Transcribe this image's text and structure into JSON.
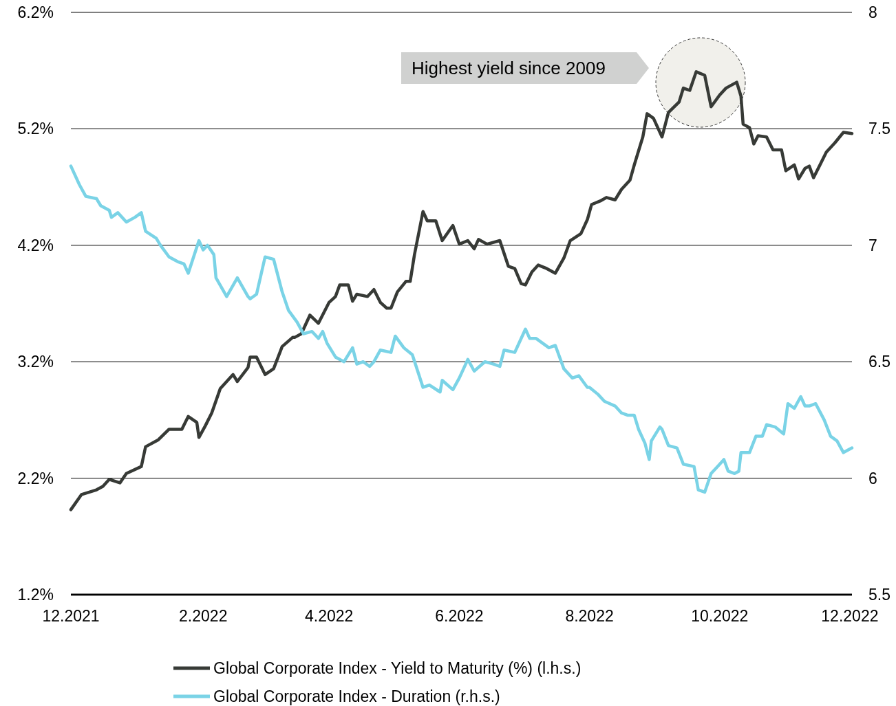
{
  "chart_data": {
    "type": "line",
    "xlim": [
      "2021-12-01",
      "2022-12-02"
    ],
    "xticks": [
      {
        "value": "2021-12-01",
        "label": "12.2021"
      },
      {
        "value": "2022-02-01",
        "label": "2.2022"
      },
      {
        "value": "2022-04-01",
        "label": "4.2022"
      },
      {
        "value": "2022-06-01",
        "label": "6.2022"
      },
      {
        "value": "2022-08-01",
        "label": "8.2022"
      },
      {
        "value": "2022-10-01",
        "label": "10.2022"
      },
      {
        "value": "2022-12-01",
        "label": "12.2022"
      }
    ],
    "ylim": [
      1.2,
      6.2
    ],
    "yticks": [
      {
        "value": 1.2,
        "label": "1.2%"
      },
      {
        "value": 2.2,
        "label": "2.2%"
      },
      {
        "value": 3.2,
        "label": "3.2%"
      },
      {
        "value": 4.2,
        "label": "4.2%"
      },
      {
        "value": 5.2,
        "label": "5.2%"
      },
      {
        "value": 6.2,
        "label": "6.2%"
      }
    ],
    "y2lim": [
      5.5,
      8
    ],
    "y2ticks": [
      5.5,
      6,
      6.5,
      7,
      7.5,
      8
    ],
    "grid": "y",
    "legend": "bottom",
    "annotations": [
      "Highest yield since 2009"
    ],
    "series": [
      {
        "name": "Global Corporate Index - Yield to Maturity (%) (l.h.s.)",
        "color": "#373a36",
        "x": [
          "2021-12-01",
          "2021-12-06",
          "2021-12-13",
          "2021-12-16",
          "2021-12-19",
          "2021-12-24",
          "2021-12-27",
          "2022-01-03",
          "2022-01-05",
          "2022-01-11",
          "2022-01-16",
          "2022-01-22",
          "2022-01-25",
          "2022-01-29",
          "2022-01-30",
          "2022-02-02",
          "2022-02-05",
          "2022-02-09",
          "2022-02-15",
          "2022-02-17",
          "2022-02-22",
          "2022-02-23",
          "2022-02-26",
          "2022-03-02",
          "2022-03-06",
          "2022-03-10",
          "2022-03-15",
          "2022-03-16",
          "2022-03-19",
          "2022-03-23",
          "2022-03-27",
          "2022-04-01",
          "2022-04-04",
          "2022-04-06",
          "2022-04-10",
          "2022-04-12",
          "2022-04-14",
          "2022-04-19",
          "2022-04-22",
          "2022-04-25",
          "2022-04-28",
          "2022-04-30",
          "2022-05-03",
          "2022-05-07",
          "2022-05-09",
          "2022-05-11",
          "2022-05-15",
          "2022-05-17",
          "2022-05-21",
          "2022-05-24",
          "2022-05-29",
          "2022-06-01",
          "2022-06-05",
          "2022-06-08",
          "2022-06-10",
          "2022-06-14",
          "2022-06-20",
          "2022-06-24",
          "2022-06-27",
          "2022-06-30",
          "2022-07-02",
          "2022-07-05",
          "2022-07-08",
          "2022-07-12",
          "2022-07-16",
          "2022-07-20",
          "2022-07-23",
          "2022-07-28",
          "2022-07-31",
          "2022-08-02",
          "2022-08-06",
          "2022-08-09",
          "2022-08-13",
          "2022-08-16",
          "2022-08-20",
          "2022-08-22",
          "2022-08-26",
          "2022-08-28",
          "2022-08-31",
          "2022-09-04",
          "2022-09-07",
          "2022-09-12",
          "2022-09-14",
          "2022-09-17",
          "2022-09-20",
          "2022-09-24",
          "2022-09-27",
          "2022-10-01",
          "2022-10-04",
          "2022-10-09",
          "2022-10-11",
          "2022-10-12",
          "2022-10-15",
          "2022-10-17",
          "2022-10-19",
          "2022-10-23",
          "2022-10-26",
          "2022-10-30",
          "2022-11-01",
          "2022-11-05",
          "2022-11-07",
          "2022-11-10",
          "2022-11-12",
          "2022-11-14",
          "2022-11-17",
          "2022-11-20",
          "2022-11-24",
          "2022-11-28",
          "2022-12-02"
        ],
        "values": [
          1.93,
          2.06,
          2.1,
          2.13,
          2.19,
          2.16,
          2.24,
          2.3,
          2.47,
          2.53,
          2.62,
          2.62,
          2.73,
          2.68,
          2.55,
          2.65,
          2.76,
          2.97,
          3.09,
          3.03,
          3.15,
          3.24,
          3.24,
          3.09,
          3.14,
          3.33,
          3.41,
          3.41,
          3.44,
          3.6,
          3.53,
          3.71,
          3.76,
          3.86,
          3.86,
          3.72,
          3.78,
          3.76,
          3.82,
          3.71,
          3.66,
          3.66,
          3.8,
          3.89,
          3.89,
          4.12,
          4.49,
          4.41,
          4.41,
          4.24,
          4.37,
          4.21,
          4.24,
          4.17,
          4.25,
          4.21,
          4.24,
          4.02,
          4.0,
          3.87,
          3.86,
          3.97,
          4.03,
          4.0,
          3.96,
          4.09,
          4.24,
          4.3,
          4.42,
          4.55,
          4.58,
          4.61,
          4.59,
          4.68,
          4.76,
          4.89,
          5.13,
          5.33,
          5.29,
          5.13,
          5.34,
          5.43,
          5.55,
          5.53,
          5.69,
          5.66,
          5.39,
          5.49,
          5.55,
          5.6,
          5.48,
          5.24,
          5.21,
          5.07,
          5.14,
          5.13,
          5.02,
          5.02,
          4.84,
          4.89,
          4.77,
          4.86,
          4.88,
          4.78,
          4.89,
          5.0,
          5.08,
          5.17,
          5.16
        ]
      },
      {
        "name": "Global Corporate Index - Duration (r.h.s.)",
        "color": "#7ad3e6",
        "axis": "y2",
        "x": [
          "2021-12-01",
          "2021-12-05",
          "2021-12-08",
          "2021-12-13",
          "2021-12-15",
          "2021-12-19",
          "2021-12-20",
          "2021-12-23",
          "2021-12-27",
          "2021-12-31",
          "2022-01-03",
          "2022-01-05",
          "2022-01-10",
          "2022-01-12",
          "2022-01-16",
          "2022-01-20",
          "2022-01-23",
          "2022-01-25",
          "2022-01-30",
          "2022-02-01",
          "2022-02-03",
          "2022-02-06",
          "2022-02-07",
          "2022-02-12",
          "2022-02-17",
          "2022-02-22",
          "2022-02-23",
          "2022-02-26",
          "2022-03-02",
          "2022-03-06",
          "2022-03-10",
          "2022-03-13",
          "2022-03-17",
          "2022-03-20",
          "2022-03-24",
          "2022-03-27",
          "2022-03-29",
          "2022-03-31",
          "2022-04-04",
          "2022-04-08",
          "2022-04-12",
          "2022-04-14",
          "2022-04-17",
          "2022-04-20",
          "2022-04-22",
          "2022-04-25",
          "2022-04-30",
          "2022-05-02",
          "2022-05-06",
          "2022-05-10",
          "2022-05-15",
          "2022-05-18",
          "2022-05-23",
          "2022-05-24",
          "2022-05-29",
          "2022-06-01",
          "2022-06-05",
          "2022-06-08",
          "2022-06-13",
          "2022-06-17",
          "2022-06-20",
          "2022-06-22",
          "2022-06-27",
          "2022-07-02",
          "2022-07-04",
          "2022-07-07",
          "2022-07-10",
          "2022-07-13",
          "2022-07-16",
          "2022-07-20",
          "2022-07-24",
          "2022-07-27",
          "2022-07-31",
          "2022-08-01",
          "2022-08-05",
          "2022-08-06",
          "2022-08-08",
          "2022-08-13",
          "2022-08-16",
          "2022-08-19",
          "2022-08-22",
          "2022-08-24",
          "2022-08-27",
          "2022-08-29",
          "2022-08-30",
          "2022-09-03",
          "2022-09-04",
          "2022-09-07",
          "2022-09-11",
          "2022-09-14",
          "2022-09-19",
          "2022-09-21",
          "2022-09-24",
          "2022-09-27",
          "2022-09-30",
          "2022-10-03",
          "2022-10-05",
          "2022-10-08",
          "2022-10-10",
          "2022-10-11",
          "2022-10-15",
          "2022-10-18",
          "2022-10-21",
          "2022-10-23",
          "2022-10-27",
          "2022-10-31",
          "2022-11-02",
          "2022-11-05",
          "2022-11-08",
          "2022-11-10",
          "2022-11-12",
          "2022-11-15",
          "2022-11-19",
          "2022-11-22",
          "2022-11-25",
          "2022-11-28",
          "2022-12-02"
        ],
        "values": [
          7.34,
          7.26,
          7.21,
          7.2,
          7.17,
          7.15,
          7.12,
          7.14,
          7.1,
          7.12,
          7.14,
          7.06,
          7.03,
          7.0,
          6.95,
          6.93,
          6.92,
          6.88,
          7.02,
          6.98,
          7.0,
          6.96,
          6.86,
          6.78,
          6.86,
          6.78,
          6.77,
          6.79,
          6.95,
          6.94,
          6.8,
          6.72,
          6.67,
          6.62,
          6.63,
          6.6,
          6.63,
          6.58,
          6.52,
          6.5,
          6.56,
          6.49,
          6.5,
          6.48,
          6.5,
          6.55,
          6.54,
          6.61,
          6.56,
          6.53,
          6.39,
          6.4,
          6.37,
          6.42,
          6.38,
          6.43,
          6.51,
          6.46,
          6.5,
          6.49,
          6.48,
          6.55,
          6.54,
          6.64,
          6.6,
          6.6,
          6.58,
          6.56,
          6.57,
          6.47,
          6.43,
          6.44,
          6.39,
          6.39,
          6.36,
          6.35,
          6.33,
          6.31,
          6.28,
          6.27,
          6.27,
          6.21,
          6.15,
          6.08,
          6.16,
          6.22,
          6.21,
          6.14,
          6.13,
          6.06,
          6.05,
          5.95,
          5.94,
          6.02,
          6.05,
          6.08,
          6.03,
          6.02,
          6.03,
          6.11,
          6.11,
          6.18,
          6.18,
          6.23,
          6.22,
          6.19,
          6.32,
          6.3,
          6.35,
          6.31,
          6.31,
          6.32,
          6.25,
          6.18,
          6.16,
          6.11,
          6.13
        ]
      }
    ]
  }
}
